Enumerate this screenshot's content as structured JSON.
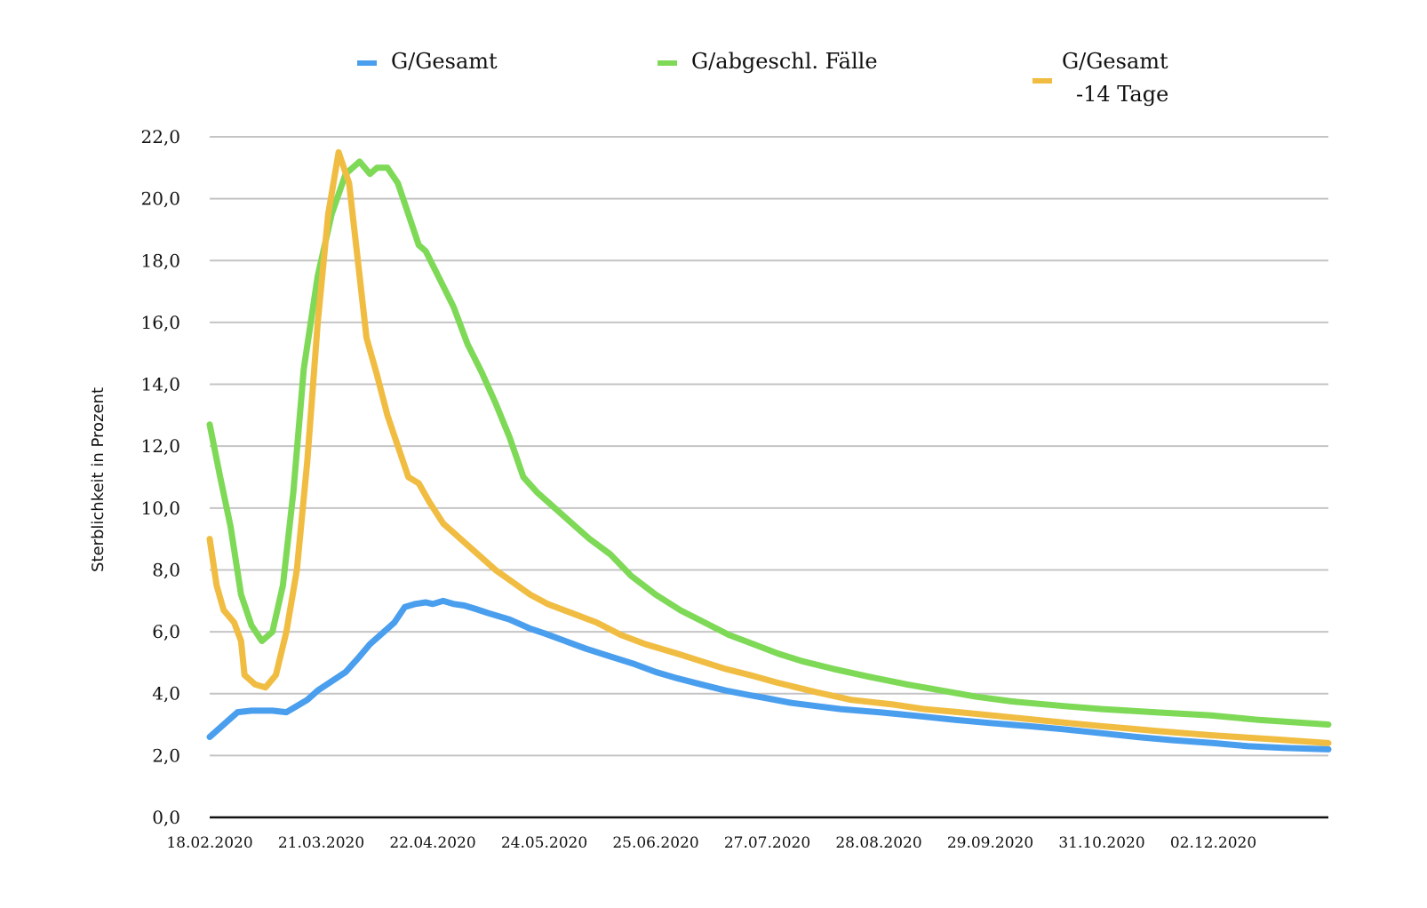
{
  "chart_data": {
    "type": "line",
    "title": "",
    "xlabel": "",
    "ylabel": "Sterblichkeit in Prozent",
    "ylim": [
      0,
      22
    ],
    "yticks": [
      "0,0",
      "2,0",
      "4,0",
      "6,0",
      "8,0",
      "10,0",
      "12,0",
      "14,0",
      "16,0",
      "18,0",
      "20,0",
      "22,0"
    ],
    "xticks": [
      "18.02.2020",
      "21.03.2020",
      "22.04.2020",
      "24.05.2020",
      "25.06.2020",
      "27.07.2020",
      "28.08.2020",
      "29.09.2020",
      "31.10.2020",
      "02.12.2020"
    ],
    "xrange": [
      "2020-02-18",
      "2021-01-04"
    ],
    "grid": true,
    "legend_position": "top",
    "series": [
      {
        "name": "G/Gesamt",
        "color": "#4a9eee",
        "x": [
          "2020-02-18",
          "2020-02-22",
          "2020-02-26",
          "2020-03-01",
          "2020-03-07",
          "2020-03-11",
          "2020-03-14",
          "2020-03-17",
          "2020-03-20",
          "2020-03-24",
          "2020-03-28",
          "2020-04-01",
          "2020-04-04",
          "2020-04-08",
          "2020-04-11",
          "2020-04-14",
          "2020-04-17",
          "2020-04-20",
          "2020-04-22",
          "2020-04-25",
          "2020-04-28",
          "2020-05-01",
          "2020-05-04",
          "2020-05-08",
          "2020-05-14",
          "2020-05-20",
          "2020-05-24",
          "2020-05-30",
          "2020-06-05",
          "2020-06-12",
          "2020-06-19",
          "2020-06-25",
          "2020-07-01",
          "2020-07-08",
          "2020-07-15",
          "2020-07-22",
          "2020-07-27",
          "2020-08-03",
          "2020-08-10",
          "2020-08-17",
          "2020-08-28",
          "2020-09-08",
          "2020-09-19",
          "2020-09-29",
          "2020-10-10",
          "2020-10-20",
          "2020-10-31",
          "2020-11-10",
          "2020-11-20",
          "2020-12-02",
          "2020-12-12",
          "2020-12-22",
          "2021-01-04"
        ],
        "values": [
          2.6,
          3.0,
          3.4,
          3.45,
          3.45,
          3.4,
          3.6,
          3.8,
          4.1,
          4.4,
          4.7,
          5.2,
          5.6,
          6.0,
          6.3,
          6.8,
          6.9,
          6.95,
          6.9,
          7.0,
          6.9,
          6.85,
          6.75,
          6.6,
          6.4,
          6.1,
          5.95,
          5.7,
          5.45,
          5.2,
          4.95,
          4.7,
          4.5,
          4.3,
          4.1,
          3.95,
          3.85,
          3.7,
          3.6,
          3.5,
          3.4,
          3.28,
          3.15,
          3.05,
          2.95,
          2.85,
          2.72,
          2.6,
          2.5,
          2.4,
          2.3,
          2.25,
          2.2
        ]
      },
      {
        "name": "G/abgeschl. Fälle",
        "color": "#7ed957",
        "x": [
          "2020-02-18",
          "2020-02-21",
          "2020-02-24",
          "2020-02-27",
          "2020-03-01",
          "2020-03-04",
          "2020-03-07",
          "2020-03-10",
          "2020-03-13",
          "2020-03-16",
          "2020-03-20",
          "2020-03-24",
          "2020-03-28",
          "2020-04-01",
          "2020-04-04",
          "2020-04-06",
          "2020-04-09",
          "2020-04-12",
          "2020-04-15",
          "2020-04-18",
          "2020-04-20",
          "2020-04-24",
          "2020-04-28",
          "2020-05-02",
          "2020-05-06",
          "2020-05-10",
          "2020-05-14",
          "2020-05-18",
          "2020-05-22",
          "2020-05-27",
          "2020-06-01",
          "2020-06-06",
          "2020-06-12",
          "2020-06-18",
          "2020-06-25",
          "2020-07-02",
          "2020-07-09",
          "2020-07-16",
          "2020-07-23",
          "2020-07-30",
          "2020-08-06",
          "2020-08-15",
          "2020-08-25",
          "2020-09-05",
          "2020-09-15",
          "2020-09-25",
          "2020-10-05",
          "2020-10-20",
          "2020-10-31",
          "2020-11-15",
          "2020-12-01",
          "2020-12-15",
          "2021-01-04"
        ],
        "values": [
          12.7,
          11.0,
          9.4,
          7.2,
          6.2,
          5.7,
          6.0,
          7.5,
          10.5,
          14.5,
          17.5,
          19.5,
          20.8,
          21.2,
          20.8,
          21.0,
          21.0,
          20.5,
          19.5,
          18.5,
          18.3,
          17.4,
          16.5,
          15.3,
          14.4,
          13.4,
          12.3,
          11.0,
          10.5,
          10.0,
          9.5,
          9.0,
          8.5,
          7.8,
          7.2,
          6.7,
          6.3,
          5.9,
          5.6,
          5.3,
          5.05,
          4.8,
          4.55,
          4.3,
          4.1,
          3.9,
          3.75,
          3.6,
          3.5,
          3.4,
          3.3,
          3.15,
          3.0
        ]
      },
      {
        "name": "G/Gesamt\n-14 Tage",
        "color": "#f0bd42",
        "x": [
          "2020-02-18",
          "2020-02-20",
          "2020-02-22",
          "2020-02-25",
          "2020-02-27",
          "2020-02-28",
          "2020-03-02",
          "2020-03-05",
          "2020-03-08",
          "2020-03-11",
          "2020-03-14",
          "2020-03-17",
          "2020-03-20",
          "2020-03-23",
          "2020-03-26",
          "2020-03-29",
          "2020-04-01",
          "2020-04-03",
          "2020-04-06",
          "2020-04-09",
          "2020-04-12",
          "2020-04-15",
          "2020-04-18",
          "2020-04-21",
          "2020-04-25",
          "2020-04-30",
          "2020-05-05",
          "2020-05-10",
          "2020-05-15",
          "2020-05-20",
          "2020-05-25",
          "2020-06-01",
          "2020-06-08",
          "2020-06-15",
          "2020-06-22",
          "2020-07-01",
          "2020-07-08",
          "2020-07-15",
          "2020-07-22",
          "2020-07-30",
          "2020-08-10",
          "2020-08-20",
          "2020-09-01",
          "2020-09-10",
          "2020-09-20",
          "2020-10-01",
          "2020-10-15",
          "2020-10-31",
          "2020-11-15",
          "2020-12-02",
          "2020-12-20",
          "2021-01-04"
        ],
        "values": [
          9.0,
          7.5,
          6.7,
          6.3,
          5.7,
          4.6,
          4.3,
          4.2,
          4.6,
          6.0,
          8.0,
          11.5,
          16.0,
          19.5,
          21.5,
          20.5,
          17.5,
          15.5,
          14.3,
          13.0,
          12.0,
          11.0,
          10.8,
          10.2,
          9.5,
          9.0,
          8.5,
          8.0,
          7.6,
          7.2,
          6.9,
          6.6,
          6.3,
          5.9,
          5.6,
          5.3,
          5.05,
          4.8,
          4.6,
          4.35,
          4.05,
          3.8,
          3.65,
          3.5,
          3.4,
          3.28,
          3.12,
          2.95,
          2.8,
          2.65,
          2.52,
          2.4
        ]
      }
    ]
  }
}
